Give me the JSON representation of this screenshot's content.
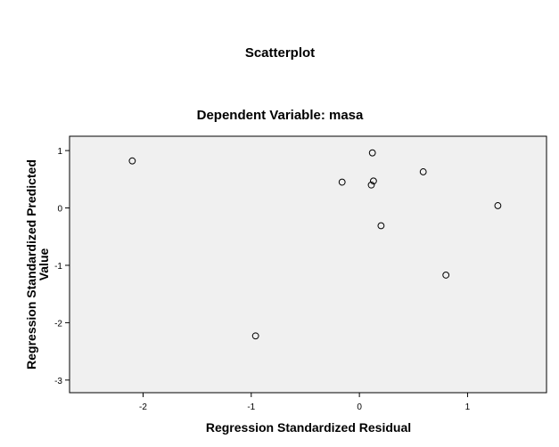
{
  "chart_data": {
    "type": "scatter",
    "title": "Scatterplot",
    "subtitle": "Dependent Variable: masa",
    "xlabel": "Regression Standardized Residual",
    "ylabel_line1": "Regression Standardized Predicted",
    "ylabel_line2": "Value",
    "xlim": [
      -2.68,
      1.73
    ],
    "ylim": [
      -3.22,
      1.25
    ],
    "xticks": [
      {
        "value": -2,
        "label": "-2"
      },
      {
        "value": -1,
        "label": "-1"
      },
      {
        "value": 0,
        "label": "0"
      },
      {
        "value": 1,
        "label": "1"
      }
    ],
    "yticks": [
      {
        "value": 1,
        "label": "1"
      },
      {
        "value": 0,
        "label": "0"
      },
      {
        "value": -1,
        "label": "-1"
      },
      {
        "value": -2,
        "label": "-2"
      },
      {
        "value": -3,
        "label": "-3"
      }
    ],
    "points": [
      {
        "x": -2.1,
        "y": 0.82
      },
      {
        "x": -0.96,
        "y": -2.23
      },
      {
        "x": -0.16,
        "y": 0.45
      },
      {
        "x": 0.11,
        "y": 0.4
      },
      {
        "x": 0.12,
        "y": 0.96
      },
      {
        "x": 0.13,
        "y": 0.47
      },
      {
        "x": 0.2,
        "y": -0.31
      },
      {
        "x": 0.59,
        "y": 0.63
      },
      {
        "x": 0.8,
        "y": -1.17
      },
      {
        "x": 1.28,
        "y": 0.04
      }
    ],
    "grid": false,
    "legend": false,
    "colors": {
      "plot_background": "#f0f0f0",
      "frame": "#000000",
      "marker_stroke": "#000000"
    }
  }
}
